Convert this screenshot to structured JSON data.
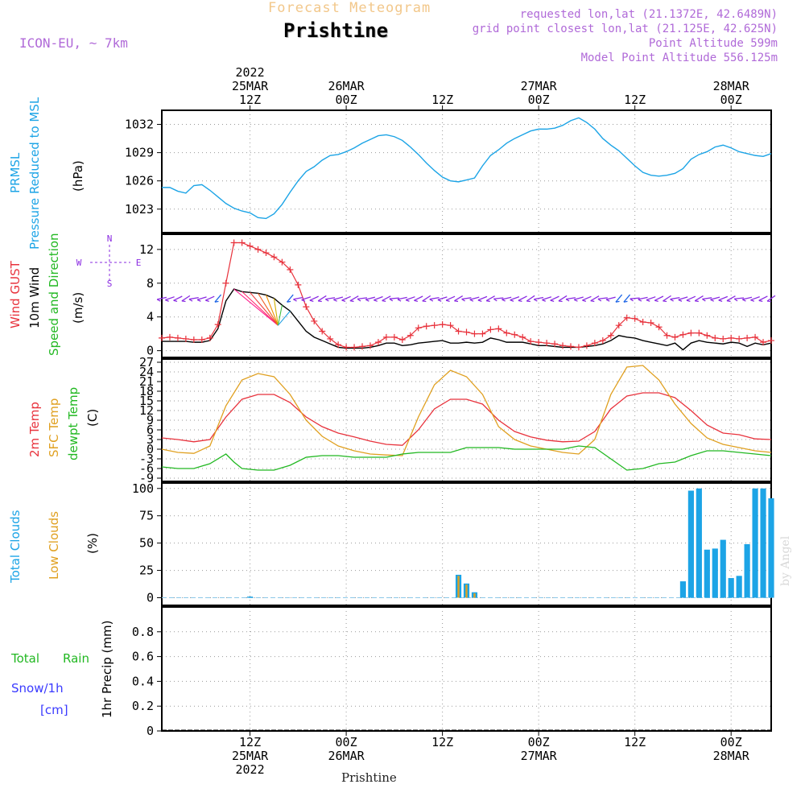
{
  "header": {
    "forecast_title": "Forecast Meteogram",
    "station": "Prishtine",
    "model": "ICON-EU, ~ 7km",
    "requested": "requested lon,lat (21.1372E, 42.6489N)",
    "grid_point": "grid point closest lon,lat (21.125E, 42.625N)",
    "point_altitude": "Point Altitude 599m",
    "model_altitude": "Model Point Altitude 556.125m"
  },
  "time_axis": {
    "top_labels": [
      {
        "t": 12,
        "lines": [
          "2022",
          "25MAR",
          "12Z"
        ]
      },
      {
        "t": 24,
        "lines": [
          "26MAR",
          "00Z"
        ]
      },
      {
        "t": 36,
        "lines": [
          "12Z"
        ]
      },
      {
        "t": 48,
        "lines": [
          "27MAR",
          "00Z"
        ]
      },
      {
        "t": 60,
        "lines": [
          "12Z"
        ]
      },
      {
        "t": 72,
        "lines": [
          "28MAR",
          "00Z"
        ]
      }
    ],
    "bottom_labels": [
      {
        "t": 12,
        "lines": [
          "12Z",
          "25MAR",
          "2022"
        ]
      },
      {
        "t": 24,
        "lines": [
          "00Z",
          "26MAR"
        ]
      },
      {
        "t": 36,
        "lines": [
          "12Z"
        ]
      },
      {
        "t": 48,
        "lines": [
          "00Z",
          "27MAR"
        ]
      },
      {
        "t": 60,
        "lines": [
          "12Z"
        ]
      },
      {
        "t": 72,
        "lines": [
          "00Z",
          "28MAR"
        ]
      }
    ],
    "bottom_station": "Prishtine",
    "range_hours": [
      1,
      77
    ],
    "x_unit": "hours from 2022-03-25 00Z"
  },
  "panels": {
    "pressure": {
      "labels": [
        "PRMSL",
        "Pressure Reduced to MSL",
        "(hPa)"
      ],
      "colors": [
        "#1ca4e6",
        "#1ca4e6",
        "#000000"
      ]
    },
    "wind": {
      "labels": [
        "Wind GUST",
        "10m Wind",
        "Speed and Direction",
        "(m/s)"
      ],
      "colors": [
        "#e8323c",
        "#000000",
        "#22b822",
        "#000000"
      ],
      "compass": {
        "n": "N",
        "s": "S",
        "w": "W",
        "e": "E"
      }
    },
    "temp": {
      "labels": [
        "2m Temp",
        "SFC Temp",
        "dewpt Temp",
        "(C)"
      ],
      "colors": [
        "#e8323c",
        "#e0a020",
        "#22b822",
        "#000000"
      ]
    },
    "clouds": {
      "labels": [
        "Total Clouds",
        "Low Clouds",
        "(%)"
      ],
      "colors": [
        "#1ca4e6",
        "#e0a020",
        "#000000"
      ]
    },
    "precip": {
      "labels": [
        "1hr Precip (mm)"
      ],
      "legend": [
        "Total",
        "Rain",
        "Snow/1h",
        "[cm]"
      ],
      "legend_colors": [
        "#22b822",
        "#22b822",
        "#3a3aff",
        "#3a3aff"
      ]
    }
  },
  "watermark": "by Angel",
  "colors": {
    "pressure": "#1ca4e6",
    "gust": "#e8323c",
    "wind": "#000000",
    "wind_arrows": "#8a2be2",
    "temp2m": "#e8323c",
    "sfc": "#e0a020",
    "dewpt": "#22b822",
    "total_clouds": "#1ca4e6",
    "low_clouds": "#e0a020",
    "title_purple": "#b06ad8"
  },
  "chart_data": [
    {
      "type": "line",
      "title": "PRMSL Pressure Reduced to MSL",
      "ylabel": "(hPa)",
      "ylim": [
        1020.5,
        1033.5
      ],
      "yticks": [
        1023,
        1026,
        1029,
        1032
      ],
      "grid": true,
      "series": [
        {
          "name": "PRMSL",
          "x": [
            1,
            2,
            3,
            4,
            5,
            6,
            7,
            8,
            9,
            10,
            11,
            12,
            13,
            14,
            15,
            16,
            17,
            18,
            19,
            20,
            21,
            22,
            23,
            24,
            25,
            26,
            27,
            28,
            29,
            30,
            31,
            32,
            33,
            34,
            35,
            36,
            37,
            38,
            39,
            40,
            41,
            42,
            43,
            44,
            45,
            46,
            47,
            48,
            49,
            50,
            51,
            52,
            53,
            54,
            55,
            56,
            57,
            58,
            59,
            60,
            61,
            62,
            63,
            64,
            65,
            66,
            67,
            68,
            69,
            70,
            71,
            72,
            73,
            74,
            75,
            76,
            77
          ],
          "y": [
            1025.3,
            1025.3,
            1024.9,
            1024.7,
            1025.5,
            1025.6,
            1025.0,
            1024.3,
            1023.6,
            1023.1,
            1022.8,
            1022.6,
            1022.1,
            1022.0,
            1022.5,
            1023.5,
            1024.8,
            1026.0,
            1027.0,
            1027.5,
            1028.2,
            1028.7,
            1028.8,
            1029.1,
            1029.5,
            1030.0,
            1030.4,
            1030.8,
            1030.9,
            1030.7,
            1030.3,
            1029.6,
            1028.8,
            1027.9,
            1027.1,
            1026.4,
            1026.0,
            1025.9,
            1026.1,
            1026.3,
            1027.6,
            1028.7,
            1029.3,
            1030.0,
            1030.5,
            1030.9,
            1031.3,
            1031.5,
            1031.5,
            1031.6,
            1031.9,
            1032.4,
            1032.7,
            1032.2,
            1031.5,
            1030.5,
            1029.8,
            1029.2,
            1028.4,
            1027.6,
            1026.9,
            1026.6,
            1026.5,
            1026.6,
            1026.8,
            1027.3,
            1028.3,
            1028.8,
            1029.1,
            1029.6,
            1029.8,
            1029.5,
            1029.1,
            1028.9,
            1028.7,
            1028.6,
            1028.9
          ]
        }
      ]
    },
    {
      "type": "line",
      "title": "Wind GUST / 10m Wind Speed and Direction",
      "ylabel": "(m/s)",
      "ylim": [
        -0.8,
        13.8
      ],
      "yticks": [
        0,
        4,
        8,
        12
      ],
      "grid": true,
      "series": [
        {
          "name": "Wind GUST",
          "x": [
            1,
            2,
            3,
            4,
            5,
            6,
            7,
            8,
            9,
            10,
            11,
            12,
            13,
            14,
            15,
            16,
            17,
            18,
            19,
            20,
            21,
            22,
            23,
            24,
            25,
            26,
            27,
            28,
            29,
            30,
            31,
            32,
            33,
            34,
            35,
            36,
            37,
            38,
            39,
            40,
            41,
            42,
            43,
            44,
            45,
            46,
            47,
            48,
            49,
            50,
            51,
            52,
            53,
            54,
            55,
            56,
            57,
            58,
            59,
            60,
            61,
            62,
            63,
            64,
            65,
            66,
            67,
            68,
            69,
            70,
            71,
            72,
            73,
            74,
            75,
            76,
            77
          ],
          "y": [
            1.5,
            1.6,
            1.5,
            1.4,
            1.3,
            1.3,
            1.5,
            3.1,
            8.0,
            12.8,
            12.8,
            12.4,
            12.0,
            11.6,
            11.1,
            10.5,
            9.6,
            7.8,
            5.2,
            3.5,
            2.3,
            1.4,
            0.7,
            0.4,
            0.4,
            0.5,
            0.6,
            1.0,
            1.6,
            1.6,
            1.3,
            1.8,
            2.7,
            2.9,
            3.0,
            3.1,
            3.0,
            2.3,
            2.2,
            2.0,
            2.0,
            2.5,
            2.6,
            2.1,
            1.9,
            1.6,
            1.1,
            1.0,
            0.9,
            0.8,
            0.6,
            0.5,
            0.4,
            0.6,
            0.9,
            1.2,
            1.8,
            3.0,
            3.9,
            3.8,
            3.4,
            3.3,
            2.8,
            1.8,
            1.6,
            1.9,
            2.1,
            2.1,
            1.8,
            1.5,
            1.4,
            1.5,
            1.4,
            1.5,
            1.6,
            1.0,
            1.2
          ]
        },
        {
          "name": "10m Wind",
          "x": [
            1,
            2,
            3,
            4,
            5,
            6,
            7,
            8,
            9,
            10,
            11,
            12,
            13,
            14,
            15,
            16,
            17,
            18,
            19,
            20,
            21,
            22,
            23,
            24,
            25,
            26,
            27,
            28,
            29,
            30,
            31,
            32,
            33,
            34,
            35,
            36,
            37,
            38,
            39,
            40,
            41,
            42,
            43,
            44,
            45,
            46,
            47,
            48,
            49,
            50,
            51,
            52,
            53,
            54,
            55,
            56,
            57,
            58,
            59,
            60,
            61,
            62,
            63,
            64,
            65,
            66,
            67,
            68,
            69,
            70,
            71,
            72,
            73,
            74,
            75,
            76,
            77
          ],
          "y": [
            1.1,
            1.1,
            1.1,
            1.1,
            1.0,
            1.0,
            1.2,
            2.6,
            5.9,
            7.3,
            7.0,
            6.9,
            6.8,
            6.6,
            6.2,
            5.4,
            4.7,
            3.5,
            2.3,
            1.6,
            1.2,
            0.8,
            0.4,
            0.3,
            0.3,
            0.3,
            0.4,
            0.6,
            0.9,
            0.9,
            0.6,
            0.7,
            0.9,
            1.0,
            1.1,
            1.2,
            0.9,
            0.9,
            1.0,
            0.9,
            1.0,
            1.5,
            1.3,
            1.0,
            1.0,
            1.0,
            0.8,
            0.6,
            0.6,
            0.5,
            0.4,
            0.4,
            0.4,
            0.5,
            0.6,
            0.8,
            1.2,
            1.8,
            1.6,
            1.5,
            1.2,
            1.0,
            0.8,
            0.6,
            0.9,
            0.1,
            0.9,
            1.2,
            1.0,
            0.9,
            0.8,
            1.0,
            0.9,
            0.5,
            0.9,
            0.7,
            0.9
          ]
        }
      ],
      "wind_direction_arrows": "direction shown by arrows at 10m level"
    },
    {
      "type": "line",
      "title": "2m Temp / SFC Temp / dewpt Temp",
      "ylabel": "(C)",
      "ylim": [
        -10,
        28
      ],
      "yticks": [
        -9,
        -6,
        -3,
        0,
        3,
        6,
        9,
        12,
        15,
        18,
        21,
        24,
        27
      ],
      "grid": true,
      "series": [
        {
          "name": "2m Temp",
          "x": [
            1,
            3,
            5,
            7,
            9,
            11,
            13,
            15,
            17,
            19,
            21,
            23,
            25,
            27,
            29,
            31,
            33,
            35,
            37,
            39,
            41,
            43,
            45,
            47,
            49,
            51,
            53,
            55,
            57,
            59,
            61,
            63,
            65,
            67,
            69,
            71,
            73,
            75,
            77
          ],
          "y": [
            3.5,
            3.0,
            2.3,
            3.0,
            10.0,
            15.5,
            17.0,
            17.0,
            14.5,
            10.0,
            7.0,
            5.0,
            3.8,
            2.5,
            1.5,
            1.2,
            6.0,
            12.5,
            15.5,
            15.5,
            14.0,
            9.0,
            5.5,
            3.8,
            2.8,
            2.3,
            2.5,
            5.5,
            12.5,
            16.5,
            17.5,
            17.5,
            16.0,
            12.0,
            7.5,
            5.0,
            4.5,
            3.2,
            3.0
          ]
        },
        {
          "name": "SFC Temp",
          "x": [
            1,
            3,
            5,
            7,
            9,
            11,
            13,
            15,
            17,
            19,
            21,
            23,
            25,
            27,
            29,
            31,
            33,
            35,
            37,
            39,
            41,
            43,
            45,
            47,
            49,
            51,
            53,
            55,
            57,
            59,
            61,
            63,
            65,
            67,
            69,
            71,
            73,
            75,
            77
          ],
          "y": [
            0.0,
            -1.0,
            -1.3,
            1.0,
            13.5,
            21.5,
            23.5,
            22.5,
            17.0,
            9.0,
            4.0,
            1.0,
            -0.5,
            -1.5,
            -1.8,
            -2.0,
            10.0,
            20.0,
            24.5,
            22.5,
            17.0,
            7.0,
            3.0,
            1.0,
            0.0,
            -1.0,
            -1.5,
            3.0,
            17.0,
            25.5,
            26.0,
            21.5,
            14.0,
            8.0,
            3.5,
            1.5,
            0.5,
            -0.5,
            -1.0
          ]
        },
        {
          "name": "dewpt Temp",
          "x": [
            1,
            3,
            5,
            7,
            9,
            10,
            11,
            13,
            15,
            17,
            19,
            21,
            23,
            25,
            27,
            29,
            31,
            33,
            35,
            37,
            39,
            41,
            43,
            45,
            47,
            49,
            51,
            53,
            55,
            57,
            59,
            61,
            63,
            65,
            67,
            69,
            71,
            73,
            75,
            77
          ],
          "y": [
            -5.5,
            -6.0,
            -6.0,
            -4.5,
            -1.5,
            -4.0,
            -6.0,
            -6.5,
            -6.5,
            -5.0,
            -2.5,
            -2.0,
            -2.0,
            -2.5,
            -2.5,
            -2.5,
            -1.5,
            -1.0,
            -1.0,
            -1.0,
            0.5,
            0.5,
            0.5,
            0.0,
            0.0,
            0.0,
            0.0,
            1.0,
            0.5,
            -3.0,
            -6.5,
            -6.0,
            -4.5,
            -4.0,
            -2.0,
            -0.5,
            -0.5,
            -1.0,
            -1.5,
            -2.0
          ]
        }
      ]
    },
    {
      "type": "bar",
      "title": "Total Clouds / Low Clouds",
      "ylabel": "(%)",
      "ylim": [
        -7,
        105
      ],
      "yticks": [
        0,
        25,
        50,
        75,
        100
      ],
      "grid": true,
      "series": [
        {
          "name": "Total Clouds",
          "x": [
            12,
            38,
            39,
            40,
            66,
            67,
            68,
            69,
            70,
            71,
            72,
            73,
            74,
            75,
            76,
            77
          ],
          "y": [
            1,
            21,
            13,
            5,
            15,
            98,
            100,
            44,
            45,
            53,
            18,
            20,
            49,
            100,
            100,
            91
          ]
        },
        {
          "name": "Low Clouds",
          "x": [
            38,
            39,
            40
          ],
          "y": [
            20,
            12,
            4
          ]
        }
      ]
    },
    {
      "type": "line",
      "title": "1hr Precip",
      "ylabel": "1hr Precip (mm)",
      "ylim": [
        0,
        1
      ],
      "yticks": [
        0,
        0.2,
        0.4,
        0.6,
        0.8
      ],
      "grid": true,
      "series": [
        {
          "name": "Total Rain",
          "x": [
            1,
            77
          ],
          "y": [
            0,
            0
          ]
        }
      ]
    }
  ]
}
